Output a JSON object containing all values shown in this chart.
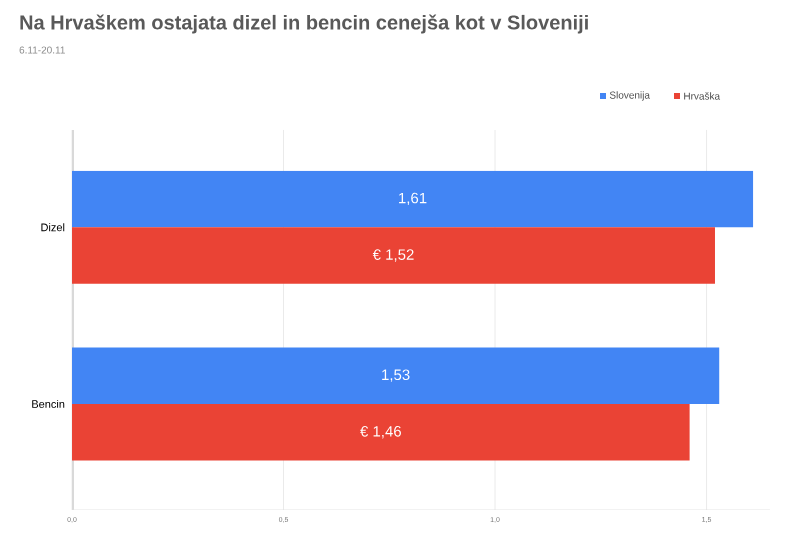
{
  "chart_data": {
    "type": "bar",
    "orientation": "horizontal",
    "title": "Na Hrvaškem ostajata dizel in bencin cenejša kot v Sloveniji",
    "subtitle": "6.11-20.11",
    "categories": [
      "Dizel",
      "Bencin"
    ],
    "series": [
      {
        "name": "Slovenija",
        "color": "#4285f4",
        "values": [
          1.61,
          1.53
        ],
        "value_labels": [
          "1,61",
          "1,53"
        ]
      },
      {
        "name": "Hrvaška",
        "color": "#ea4335",
        "values": [
          1.52,
          1.46
        ],
        "value_labels": [
          "€ 1,52",
          "€ 1,46"
        ]
      }
    ],
    "xlim": [
      0,
      1.65
    ],
    "xticks": [
      {
        "value": 0,
        "label": "0,0"
      },
      {
        "value": 0.5,
        "label": "0,5"
      },
      {
        "value": 1.0,
        "label": "1,0"
      },
      {
        "value": 1.5,
        "label": "1,5"
      }
    ],
    "grid": "x",
    "legend": "top right"
  }
}
